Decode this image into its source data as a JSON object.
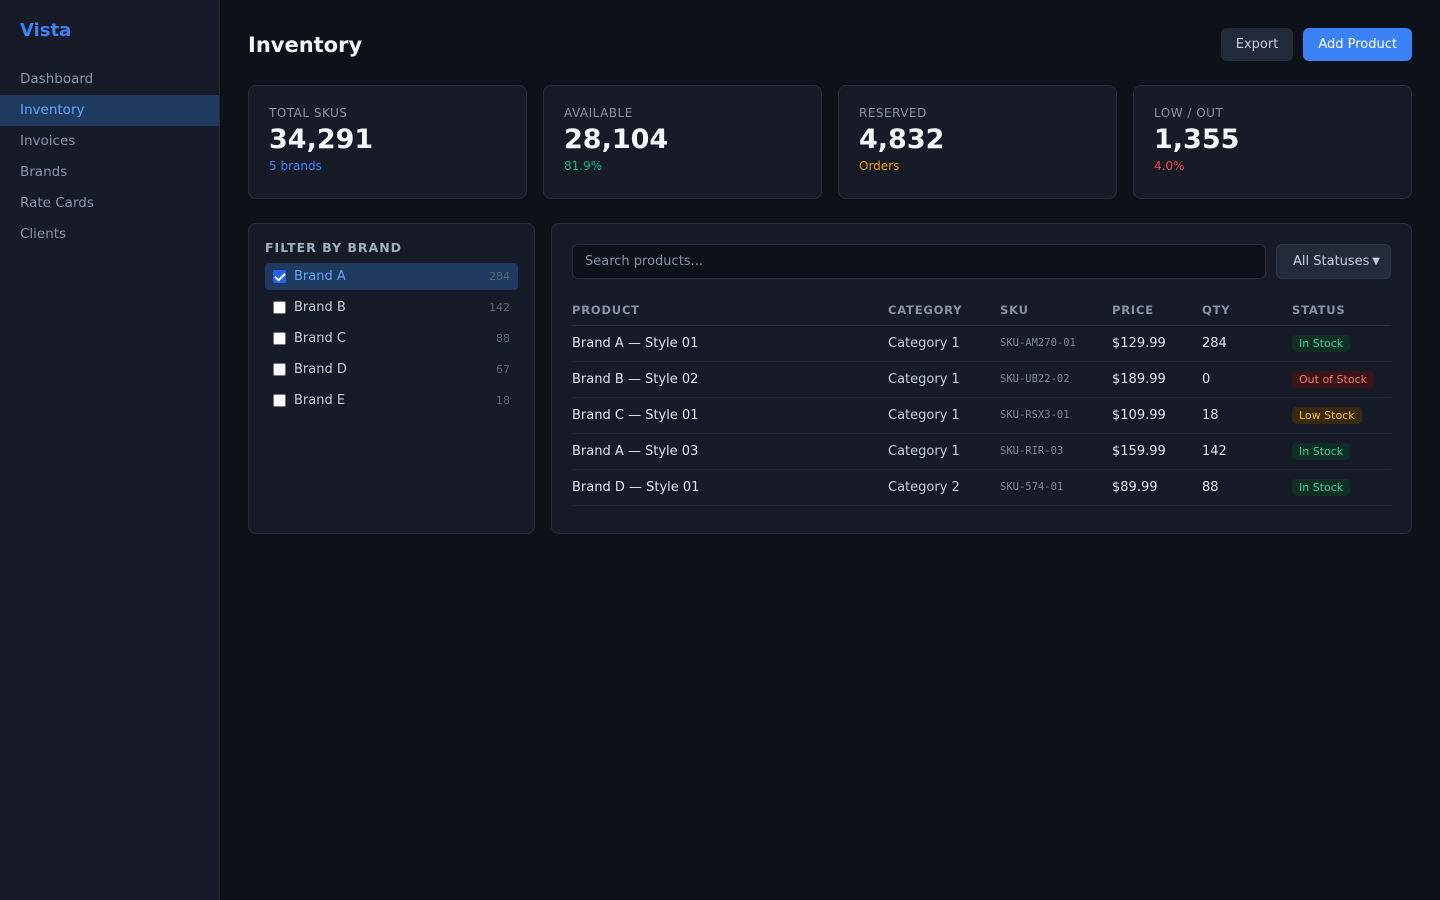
{
  "app": {
    "name": "Vista"
  },
  "sidebar": {
    "items": [
      {
        "label": "Dashboard",
        "active": false
      },
      {
        "label": "Inventory",
        "active": true
      },
      {
        "label": "Invoices",
        "active": false
      },
      {
        "label": "Brands",
        "active": false
      },
      {
        "label": "Rate Cards",
        "active": false
      },
      {
        "label": "Clients",
        "active": false
      }
    ]
  },
  "header": {
    "title": "Inventory",
    "export_label": "Export",
    "add_label": "Add Product"
  },
  "stats": [
    {
      "label": "TOTAL SKUS",
      "value": "34,291",
      "sub": "5 brands",
      "sub_color": "#3b82f6"
    },
    {
      "label": "AVAILABLE",
      "value": "28,104",
      "sub": "81.9%",
      "sub_color": "#10b981"
    },
    {
      "label": "RESERVED",
      "value": "4,832",
      "sub": "Orders",
      "sub_color": "#f59e0b"
    },
    {
      "label": "LOW / OUT",
      "value": "1,355",
      "sub": "4.0%",
      "sub_color": "#ef4444"
    }
  ],
  "filter": {
    "title": "FILTER BY BRAND",
    "brands": [
      {
        "name": "Brand A",
        "count": "284",
        "checked": true
      },
      {
        "name": "Brand B",
        "count": "142",
        "checked": false
      },
      {
        "name": "Brand C",
        "count": "88",
        "checked": false
      },
      {
        "name": "Brand D",
        "count": "67",
        "checked": false
      },
      {
        "name": "Brand E",
        "count": "18",
        "checked": false
      }
    ]
  },
  "table": {
    "search_placeholder": "Search products...",
    "status_filter": "All Statuses",
    "columns": [
      "PRODUCT",
      "CATEGORY",
      "SKU",
      "PRICE",
      "QTY",
      "STATUS"
    ],
    "rows": [
      {
        "product": "Brand A — Style 01",
        "category": "Category 1",
        "sku": "SKU-AM270-01",
        "price": "$129.99",
        "qty": "284",
        "status": "In Stock",
        "status_type": "in"
      },
      {
        "product": "Brand B — Style 02",
        "category": "Category 1",
        "sku": "SKU-UB22-02",
        "price": "$189.99",
        "qty": "0",
        "status": "Out of Stock",
        "status_type": "out"
      },
      {
        "product": "Brand C — Style 01",
        "category": "Category 1",
        "sku": "SKU-RSX3-01",
        "price": "$109.99",
        "qty": "18",
        "status": "Low Stock",
        "status_type": "low"
      },
      {
        "product": "Brand A — Style 03",
        "category": "Category 1",
        "sku": "SKU-RIR-03",
        "price": "$159.99",
        "qty": "142",
        "status": "In Stock",
        "status_type": "in"
      },
      {
        "product": "Brand D — Style 01",
        "category": "Category 2",
        "sku": "SKU-574-01",
        "price": "$89.99",
        "qty": "88",
        "status": "In Stock",
        "status_type": "in"
      }
    ]
  },
  "colors": {
    "accent": "#3b82f6",
    "background": "#0d111a",
    "panel": "#161b27"
  }
}
